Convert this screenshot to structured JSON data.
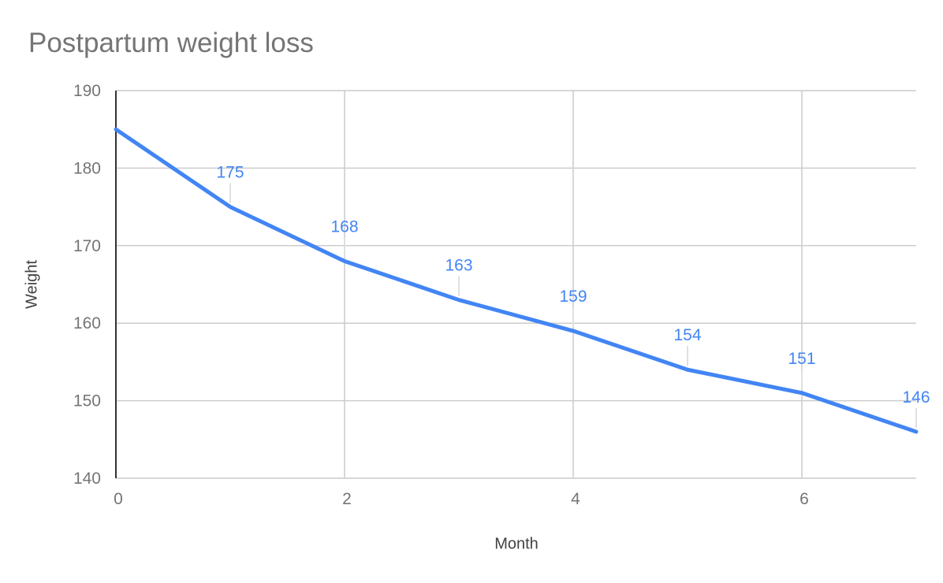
{
  "chart_data": {
    "type": "line",
    "title": "Postpartum weight loss",
    "xlabel": "Month",
    "ylabel": "Weight",
    "x": [
      0,
      1,
      2,
      3,
      4,
      5,
      6,
      7
    ],
    "values": [
      185,
      175,
      168,
      163,
      159,
      154,
      151,
      146
    ],
    "data_labels": [
      null,
      "175",
      "168",
      "163",
      "159",
      "154",
      "151",
      "146"
    ],
    "xlim": [
      0,
      7
    ],
    "ylim": [
      140,
      190
    ],
    "xticks": [
      0,
      2,
      4,
      6
    ],
    "yticks": [
      140,
      150,
      160,
      170,
      180,
      190
    ],
    "grid": true,
    "legend": "none",
    "colors": {
      "series": "#4285f4",
      "data_label": "#4285f4",
      "title": "#757575",
      "tick_label": "#757575",
      "axis_title": "#424242",
      "gridline": "#cccccc",
      "axis_line": "#333333",
      "leader_line": "#e0e0e0",
      "background": "#ffffff"
    }
  }
}
